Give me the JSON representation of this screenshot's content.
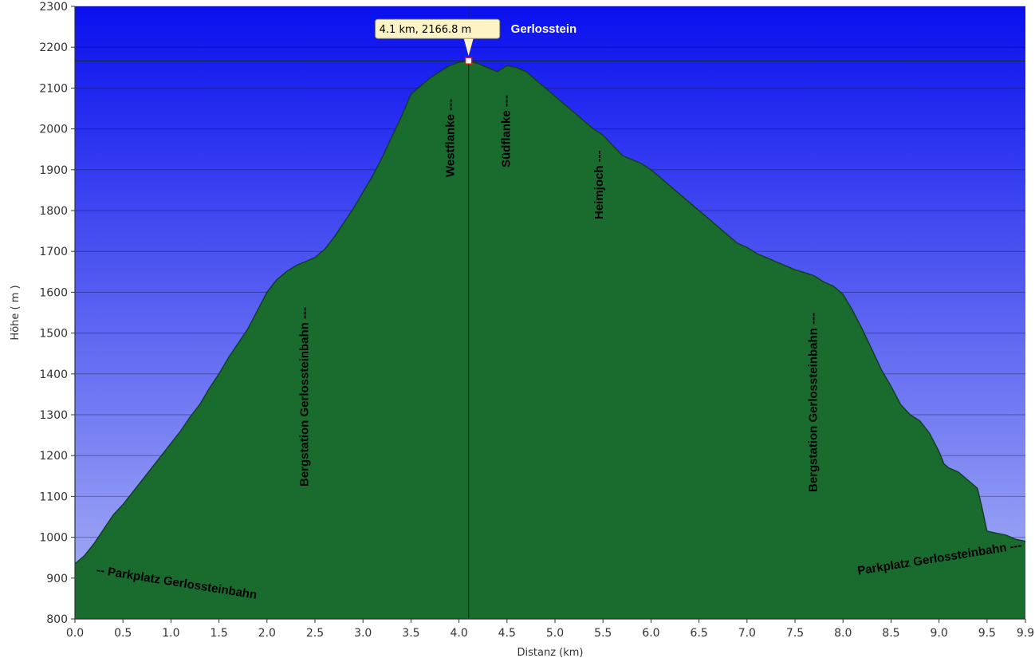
{
  "chart_data": {
    "type": "area",
    "title": "",
    "xlabel": "Distanz  (km)",
    "ylabel": "Höhe ( m )",
    "xlim": [
      0,
      9.9
    ],
    "ylim": [
      800,
      2300
    ],
    "x_ticks": [
      0,
      0.5,
      1,
      1.5,
      2,
      2.5,
      3,
      3.5,
      4,
      4.5,
      5,
      5.5,
      6,
      6.5,
      7,
      7.5,
      8,
      8.5,
      9,
      9.5,
      9.9
    ],
    "x_tick_labels": [
      "0.0",
      "0.5",
      "1.0",
      "1.5",
      "2.0",
      "2.5",
      "3.0",
      "3.5",
      "4.0",
      "4.5",
      "5.0",
      "5.5",
      "6.0",
      "6.5",
      "7.0",
      "7.5",
      "8.0",
      "8.5",
      "9.0",
      "9.5",
      "9.9"
    ],
    "y_ticks": [
      800,
      900,
      1000,
      1100,
      1200,
      1300,
      1400,
      1500,
      1600,
      1700,
      1800,
      1900,
      2000,
      2100,
      2200,
      2300
    ],
    "y_tick_labels": [
      "800",
      "900",
      "1000",
      "1100",
      "1200",
      "1300",
      "1400",
      "1500",
      "1600",
      "1700",
      "1800",
      "1900",
      "2000",
      "2100",
      "2200",
      "2300"
    ],
    "grid": true,
    "colors": {
      "sky_top": "#0a10ee",
      "sky_bottom": "#a9b3f4",
      "terrain_light": "#3aa856",
      "terrain_dark": "#196b2e",
      "terrain_outline": "#143c1e",
      "tooltip_bg": "#fdf3c4",
      "cursor": "#1a2a1a"
    },
    "x": [
      0,
      0.1,
      0.2,
      0.3,
      0.4,
      0.5,
      0.6,
      0.7,
      0.8,
      0.9,
      1.0,
      1.1,
      1.2,
      1.3,
      1.4,
      1.5,
      1.6,
      1.7,
      1.8,
      1.9,
      2.0,
      2.1,
      2.2,
      2.3,
      2.4,
      2.5,
      2.6,
      2.7,
      2.8,
      2.9,
      3.0,
      3.1,
      3.2,
      3.3,
      3.4,
      3.5,
      3.6,
      3.7,
      3.8,
      3.9,
      4.0,
      4.1,
      4.2,
      4.3,
      4.4,
      4.5,
      4.6,
      4.7,
      4.8,
      4.9,
      5.0,
      5.1,
      5.2,
      5.3,
      5.4,
      5.5,
      5.6,
      5.7,
      5.8,
      5.9,
      6.0,
      6.1,
      6.2,
      6.3,
      6.4,
      6.5,
      6.6,
      6.7,
      6.8,
      6.9,
      7.0,
      7.1,
      7.2,
      7.3,
      7.4,
      7.5,
      7.6,
      7.7,
      7.8,
      7.9,
      8.0,
      8.1,
      8.2,
      8.3,
      8.4,
      8.5,
      8.6,
      8.7,
      8.8,
      8.9,
      9.0,
      9.05,
      9.1,
      9.2,
      9.3,
      9.4,
      9.45,
      9.5,
      9.6,
      9.7,
      9.8,
      9.9
    ],
    "y": [
      935,
      955,
      985,
      1020,
      1055,
      1080,
      1110,
      1140,
      1170,
      1200,
      1230,
      1260,
      1295,
      1325,
      1365,
      1400,
      1440,
      1475,
      1510,
      1555,
      1600,
      1630,
      1650,
      1665,
      1675,
      1685,
      1705,
      1735,
      1770,
      1805,
      1845,
      1885,
      1930,
      1980,
      2030,
      2085,
      2105,
      2125,
      2140,
      2155,
      2163,
      2166.8,
      2160,
      2150,
      2140,
      2155,
      2150,
      2140,
      2120,
      2100,
      2080,
      2060,
      2040,
      2020,
      2000,
      1985,
      1960,
      1935,
      1925,
      1915,
      1900,
      1880,
      1860,
      1840,
      1820,
      1800,
      1780,
      1760,
      1740,
      1720,
      1710,
      1695,
      1685,
      1675,
      1665,
      1655,
      1648,
      1640,
      1625,
      1615,
      1595,
      1555,
      1510,
      1460,
      1410,
      1370,
      1325,
      1300,
      1285,
      1255,
      1210,
      1180,
      1170,
      1160,
      1140,
      1120,
      1070,
      1015,
      1010,
      1005,
      995,
      990
    ],
    "waypoints": [
      {
        "label": "-- Parkplatz Gerlossteinbahn",
        "x": 0.02
      },
      {
        "label": "Bergstation Gerlossteinbahn ---",
        "x": 2.38
      },
      {
        "label": "Westflanke ---",
        "x": 3.9
      },
      {
        "label": "Südflanke ---",
        "x": 4.48
      },
      {
        "label": "Heimjoch ---",
        "x": 5.45
      },
      {
        "label": "Bergstation Gerlossteinbahn ---",
        "x": 7.68
      },
      {
        "label": "Parkplatz Gerlossteinbahn ---",
        "x": 9.9
      }
    ],
    "cursor": {
      "x": 4.1,
      "y": 2166.8,
      "tooltip": "4.1 km, 2166.8 m",
      "name": "Gerlosstein"
    }
  }
}
